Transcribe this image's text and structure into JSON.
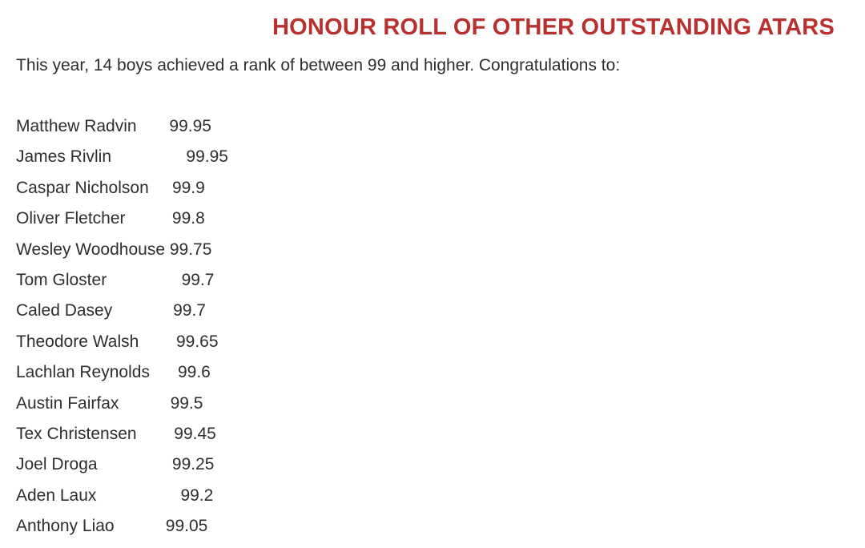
{
  "heading": "HONOUR ROLL OF OTHER OUTSTANDING ATARS",
  "intro": "This year, 14 boys achieved a rank of between 99 and higher. Congratulations to:",
  "honour_roll": [
    {
      "name": "Matthew Radvin",
      "score": "99.95"
    },
    {
      "name": "James Rivlin",
      "score": "99.95"
    },
    {
      "name": "Caspar Nicholson",
      "score": "99.9"
    },
    {
      "name": "Oliver Fletcher",
      "score": "99.8"
    },
    {
      "name": "Wesley Woodhouse",
      "score": "99.75"
    },
    {
      "name": "Tom Gloster",
      "score": "99.7"
    },
    {
      "name": "Caled Dasey",
      "score": "99.7"
    },
    {
      "name": "Theodore Walsh",
      "score": "99.65"
    },
    {
      "name": "Lachlan Reynolds",
      "score": "99.6"
    },
    {
      "name": "Austin Fairfax",
      "score": "99.5"
    },
    {
      "name": "Tex Christensen",
      "score": "99.45"
    },
    {
      "name": "Joel Droga",
      "score": "99.25"
    },
    {
      "name": "Aden Laux",
      "score": "99.2"
    },
    {
      "name": "Anthony Liao",
      "score": "99.05"
    }
  ]
}
